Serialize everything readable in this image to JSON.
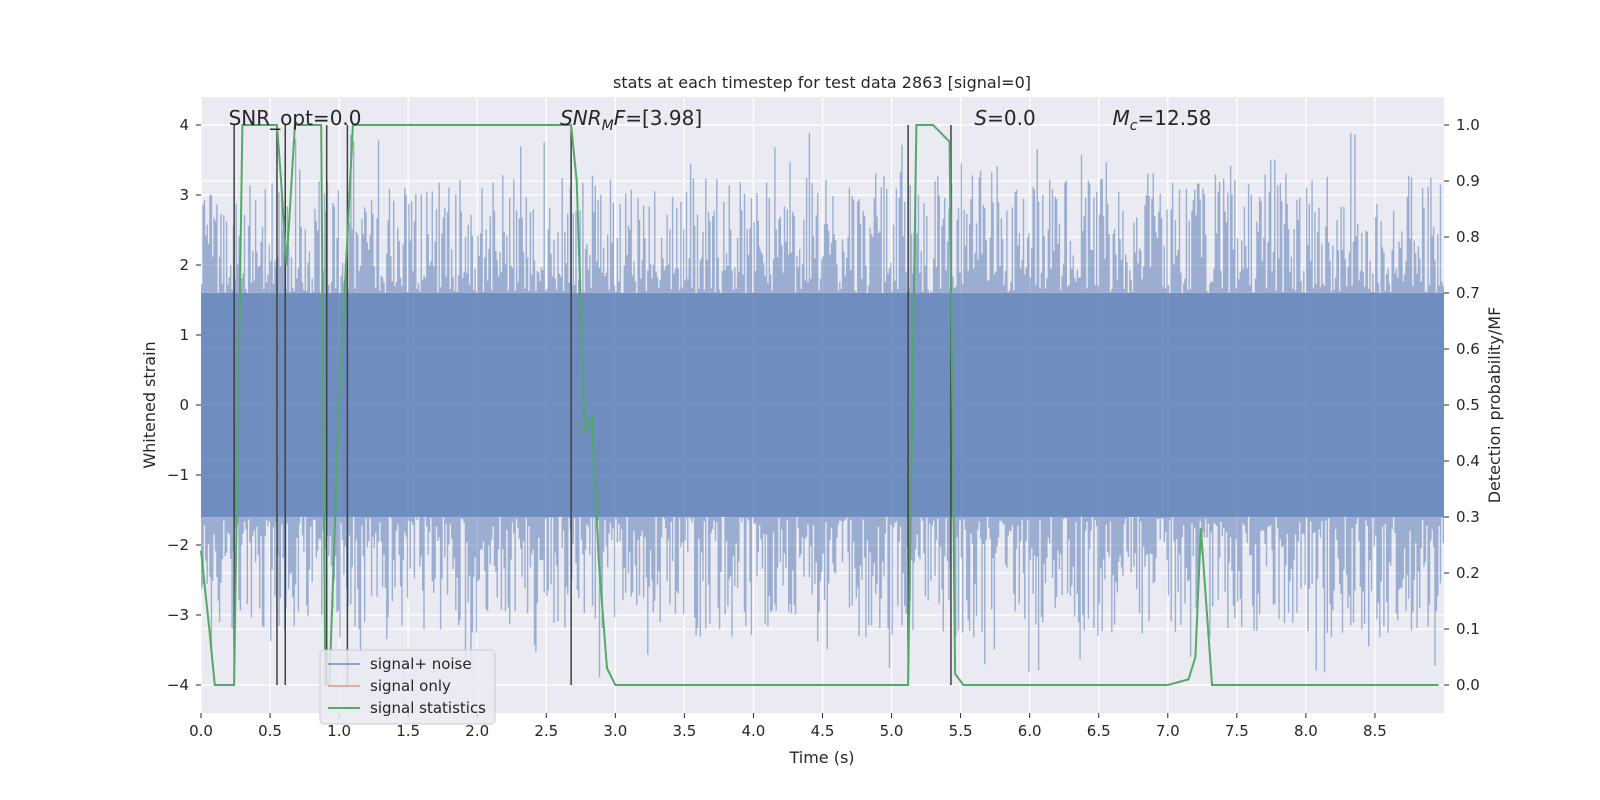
{
  "chart_data": {
    "type": "line",
    "title": "stats at each timestep for test data 2863 [signal=0]",
    "xlabel": "Time (s)",
    "ylabel_left": "Whitened strain",
    "ylabel_right": "Detection probability/MF",
    "xlim": [
      0.0,
      9.0
    ],
    "ylim_left": [
      -4.4,
      4.4
    ],
    "ylim_right": [
      -0.05,
      1.05
    ],
    "x_ticks": [
      0.0,
      0.5,
      1.0,
      1.5,
      2.0,
      2.5,
      3.0,
      3.5,
      4.0,
      4.5,
      5.0,
      5.5,
      6.0,
      6.5,
      7.0,
      7.5,
      8.0,
      8.5
    ],
    "x_tick_labels": [
      "0.0",
      "0.5",
      "1.0",
      "1.5",
      "2.0",
      "2.5",
      "3.0",
      "3.5",
      "4.0",
      "4.5",
      "5.0",
      "5.5",
      "6.0",
      "6.5",
      "7.0",
      "7.5",
      "8.0",
      "8.5"
    ],
    "y_left_ticks": [
      4,
      3,
      2,
      1,
      0,
      -1,
      -2,
      -3,
      -4
    ],
    "y_left_tick_labels": [
      "4",
      "3",
      "2",
      "1",
      "0",
      "−1",
      "−2",
      "−3",
      "−4"
    ],
    "y_right_ticks": [
      1.0,
      0.9,
      0.8,
      0.7,
      0.6,
      0.5,
      0.4,
      0.3,
      0.2,
      0.1,
      0.0
    ],
    "y_right_tick_labels": [
      "1.0",
      "0.9",
      "0.8",
      "0.7",
      "0.6",
      "0.5",
      "0.4",
      "0.3",
      "0.2",
      "0.1",
      "0.0"
    ],
    "grid": true,
    "legend_position": "lower-left",
    "annotations": [
      {
        "text": "SNR_opt=0.0",
        "x": 0.2,
        "y": 4.1
      },
      {
        "text": "SNR",
        "sub": "M",
        "rest": "F=[3.98]",
        "x": 2.6,
        "y": 4.1,
        "italic": true
      },
      {
        "text": "S",
        "rest": "=0.0",
        "x": 5.6,
        "y": 4.1,
        "italic": true
      },
      {
        "text": "M",
        "sub": "c",
        "rest": "=12.58",
        "x": 6.6,
        "y": 4.1,
        "italic": true
      }
    ],
    "series": [
      {
        "name": "signal+ noise",
        "color": "#4c72b0",
        "style": "dense noise, amplitude about ±4, sampled continuously over 0–9 s",
        "envelope_core": 1.6,
        "envelope_peak": 3.9
      },
      {
        "name": "signal only",
        "color": "#dd8452",
        "x": [],
        "y": []
      },
      {
        "name": "signal statistics",
        "color": "#55a868",
        "axis": "right",
        "x": [
          0.0,
          0.06,
          0.1,
          0.15,
          0.24,
          0.3,
          0.55,
          0.58,
          0.62,
          0.68,
          0.87,
          0.9,
          0.93,
          1.0,
          1.1,
          1.5,
          2.0,
          2.68,
          2.72,
          2.78,
          2.83,
          2.88,
          2.94,
          3.0,
          3.5,
          3.95,
          4.05,
          4.5,
          5.0,
          5.12,
          5.18,
          5.3,
          5.42,
          5.46,
          5.52,
          5.6,
          6.0,
          6.5,
          7.0,
          7.15,
          7.2,
          7.24,
          7.32,
          7.5,
          8.0,
          8.5,
          8.96
        ],
        "y": [
          0.24,
          0.1,
          0.0,
          0.0,
          0.0,
          1.0,
          1.0,
          0.9,
          0.75,
          1.0,
          1.0,
          0.0,
          0.0,
          0.5,
          1.0,
          1.0,
          1.0,
          1.0,
          0.9,
          0.45,
          0.48,
          0.22,
          0.03,
          0.0,
          0.0,
          0.0,
          0.0,
          0.0,
          0.0,
          0.0,
          1.0,
          1.0,
          0.97,
          0.02,
          0.0,
          0.0,
          0.0,
          0.0,
          0.0,
          0.01,
          0.05,
          0.28,
          0.0,
          0.0,
          0.0,
          0.0,
          0.0
        ]
      }
    ],
    "vertical_lines": {
      "color": "#404040",
      "x": [
        0.24,
        0.55,
        0.61,
        0.91,
        1.06,
        2.68,
        5.12,
        5.43
      ],
      "y_top": 4.0,
      "y_bottom": -4.0
    }
  }
}
